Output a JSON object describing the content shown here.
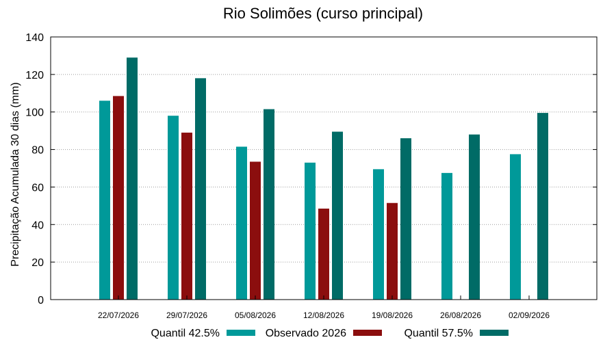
{
  "chart_data": {
    "type": "bar",
    "title": "Rio Solimões (curso principal)",
    "xlabel": "",
    "ylabel": "Precipitação Acumulada 30 dias (mm)",
    "ylim": [
      0,
      140
    ],
    "yticks": [
      0,
      20,
      40,
      60,
      80,
      100,
      120,
      140
    ],
    "grid": true,
    "legend_position": "bottom",
    "categories": [
      "22/07/2026",
      "29/07/2026",
      "05/08/2026",
      "12/08/2026",
      "19/08/2026",
      "26/08/2026",
      "02/09/2026"
    ],
    "series": [
      {
        "name": "Quantil 42.5%",
        "color": "#009999",
        "values": [
          106,
          98,
          81.5,
          73,
          69.5,
          67.5,
          77.5
        ]
      },
      {
        "name": "Observado 2026",
        "color": "#8b0e0e",
        "values": [
          108.5,
          89,
          73.5,
          48.5,
          51.5,
          null,
          null
        ]
      },
      {
        "name": "Quantil 57.5%",
        "color": "#006b66",
        "values": [
          129,
          118,
          101.5,
          89.5,
          86,
          88,
          99.5
        ]
      }
    ]
  }
}
